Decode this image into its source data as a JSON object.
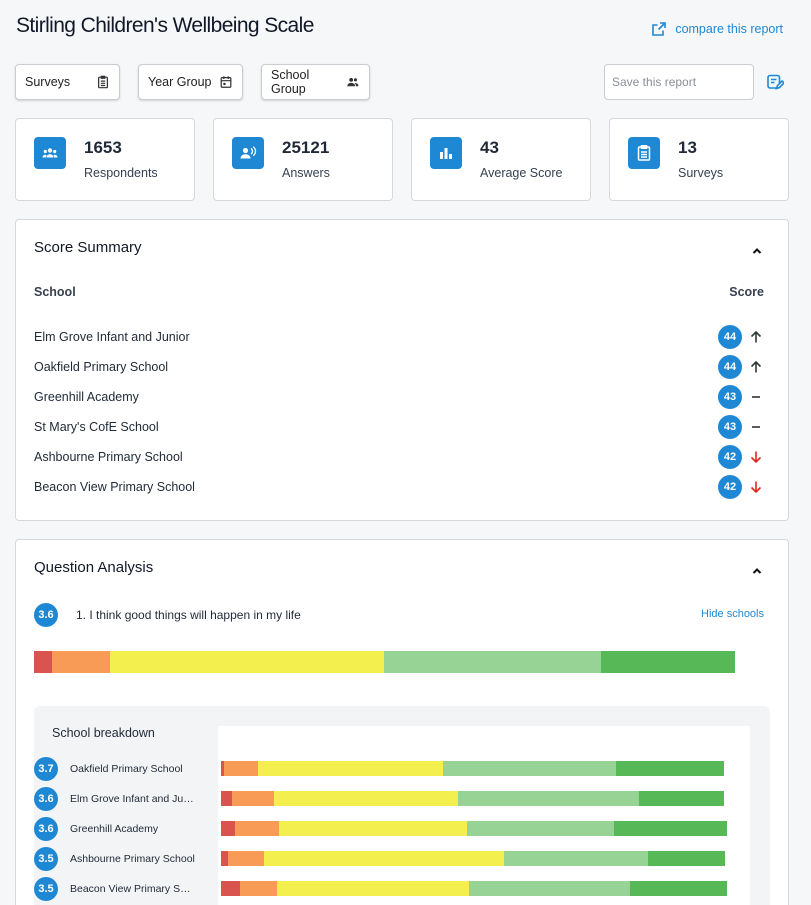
{
  "header": {
    "title": "Stirling Children's Wellbeing Scale",
    "compare_label": "compare this report"
  },
  "filters": {
    "surveys_label": "Surveys",
    "year_group_label": "Year Group",
    "school_group_label": "School Group",
    "save_placeholder": "Save this report"
  },
  "stats": [
    {
      "value": "1653",
      "label": "Respondents",
      "icon": "people-group-icon"
    },
    {
      "value": "25121",
      "label": "Answers",
      "icon": "speaking-person-icon"
    },
    {
      "value": "43",
      "label": "Average Score",
      "icon": "bar-chart-icon"
    },
    {
      "value": "13",
      "label": "Surveys",
      "icon": "clipboard-icon"
    }
  ],
  "score_summary": {
    "title": "Score Summary",
    "col_school": "School",
    "col_score": "Score",
    "rows": [
      {
        "school": "Elm Grove Infant and Junior",
        "score": "44",
        "trend": "up"
      },
      {
        "school": "Oakfield Primary School",
        "score": "44",
        "trend": "up"
      },
      {
        "school": "Greenhill Academy",
        "score": "43",
        "trend": "flat"
      },
      {
        "school": "St Mary's CofE School",
        "score": "43",
        "trend": "flat"
      },
      {
        "school": "Ashbourne Primary School",
        "score": "42",
        "trend": "down"
      },
      {
        "school": "Beacon View Primary School",
        "score": "42",
        "trend": "down"
      }
    ]
  },
  "question_analysis": {
    "title": "Question Analysis",
    "question_score": "3.6",
    "question_text": "1. I think good things will happen in my life",
    "hide_schools_label": "Hide schools",
    "overall_distribution": [
      2.6,
      8.3,
      39.1,
      30.9,
      19.1
    ],
    "breakdown_title": "School breakdown",
    "schools": [
      {
        "name": "Oakfield Primary School",
        "score": "3.7",
        "distribution": [
          0.6,
          6.7,
          36.6,
          34.1,
          21.4
        ]
      },
      {
        "name": "Elm Grove Infant and Junior",
        "score": "3.6",
        "distribution": [
          2.2,
          8.3,
          36.4,
          35.8,
          16.8
        ]
      },
      {
        "name": "Greenhill Academy",
        "score": "3.6",
        "distribution": [
          2.8,
          8.6,
          37.2,
          29.0,
          22.4
        ]
      },
      {
        "name": "Ashbourne Primary School",
        "score": "3.5",
        "distribution": [
          1.4,
          7.1,
          47.4,
          28.5,
          15.2
        ]
      },
      {
        "name": "Beacon View Primary School",
        "score": "3.5",
        "distribution": [
          3.8,
          7.3,
          37.9,
          31.8,
          19.2
        ]
      }
    ],
    "colors": [
      "#d9534f",
      "#f79b57",
      "#f2ef4e",
      "#97d394",
      "#57b857"
    ]
  }
}
